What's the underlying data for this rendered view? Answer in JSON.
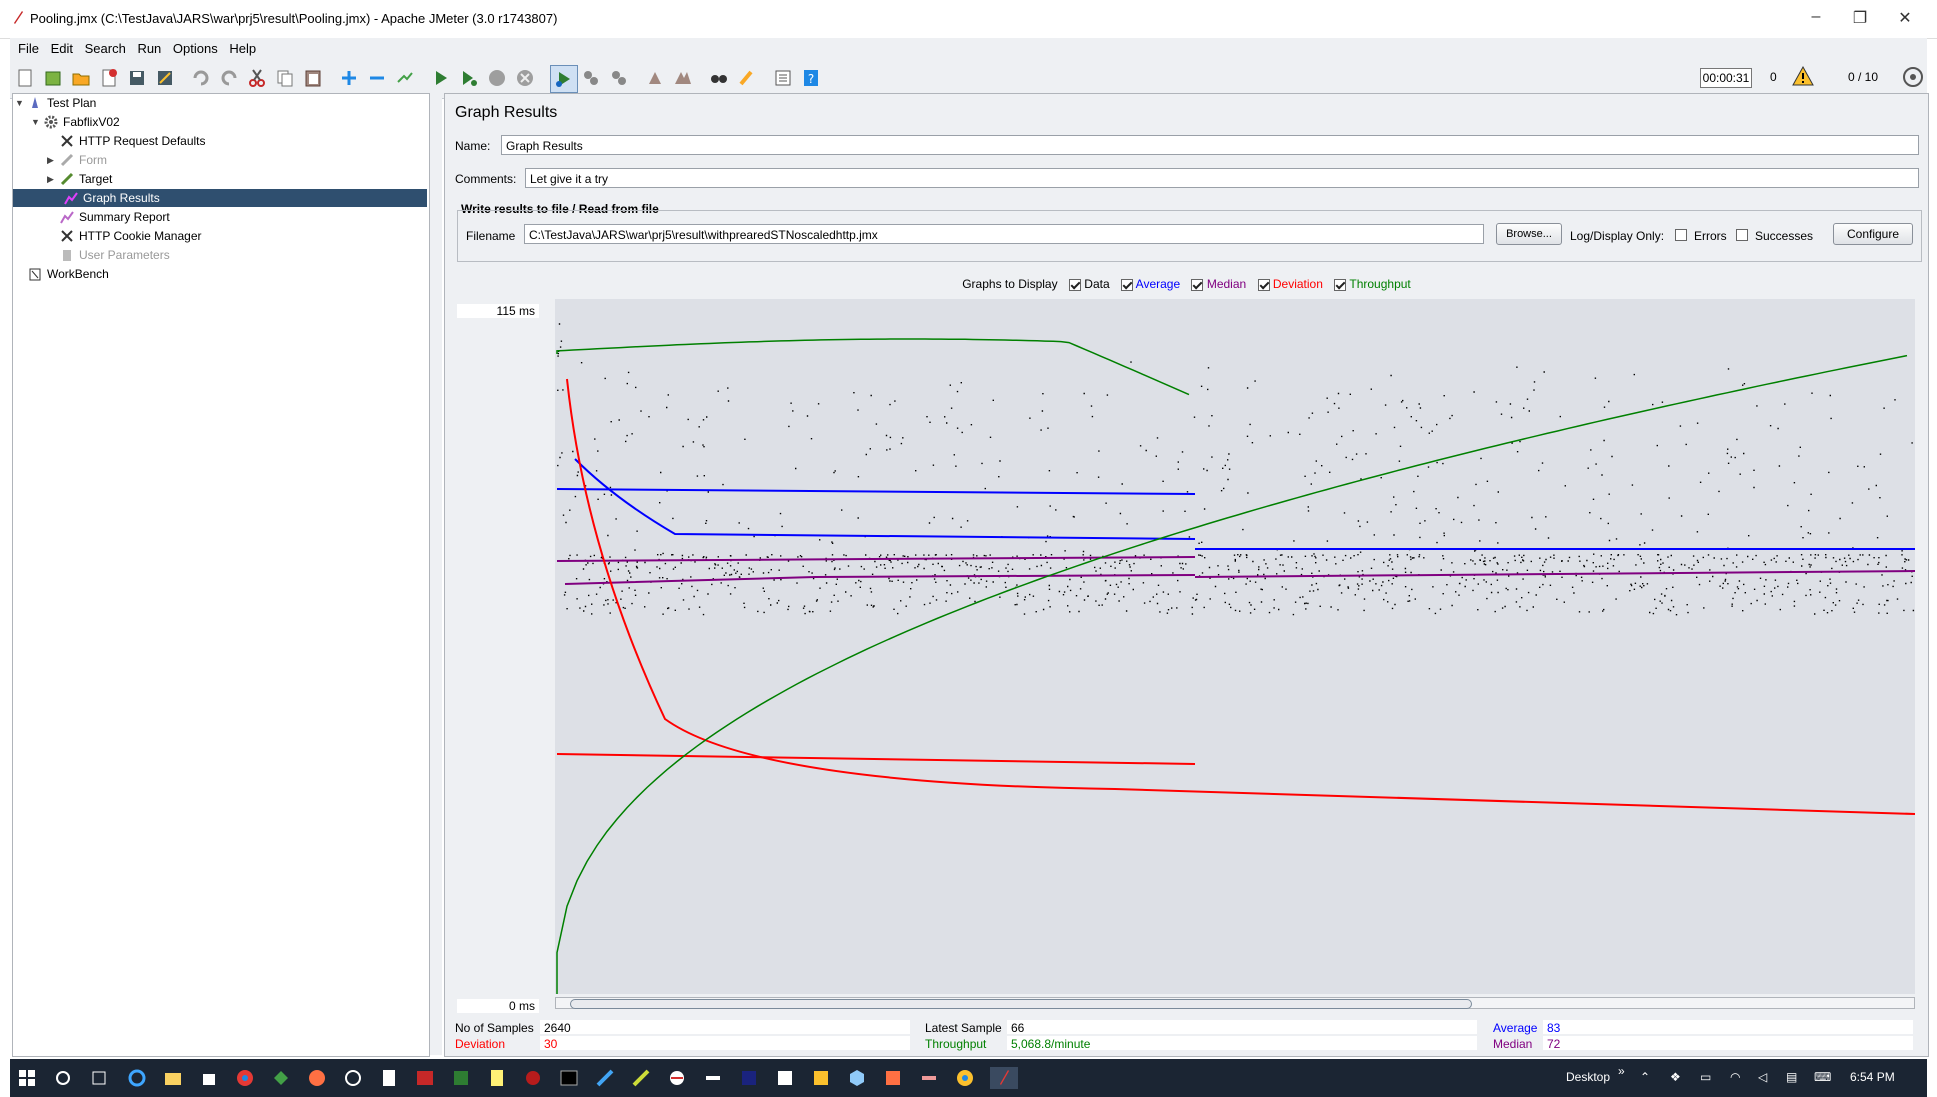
{
  "window": {
    "title": "Pooling.jmx (C:\\TestJava\\JARS\\war\\prj5\\result\\Pooling.jmx) - Apache JMeter (3.0 r1743807)",
    "controls": [
      "–",
      "❐",
      "✕"
    ]
  },
  "menu": [
    "File",
    "Edit",
    "Search",
    "Run",
    "Options",
    "Help"
  ],
  "toolbar_status": {
    "elapsed": "00:00:31",
    "error_count": "0",
    "threads": "0 / 10"
  },
  "tree": [
    {
      "label": "Test Plan",
      "icon": "test-plan-icon"
    },
    {
      "label": "FabflixV02",
      "icon": "gear-icon"
    },
    {
      "label": "HTTP Request Defaults",
      "icon": "wrench-icon"
    },
    {
      "label": "Form",
      "icon": "sampler-icon"
    },
    {
      "label": "Target",
      "icon": "sampler-icon"
    },
    {
      "label": "Graph Results",
      "icon": "graph-icon"
    },
    {
      "label": "Summary Report",
      "icon": "graph-icon"
    },
    {
      "label": "HTTP Cookie Manager",
      "icon": "wrench-icon"
    },
    {
      "label": "User Parameters",
      "icon": "params-icon"
    },
    {
      "label": "WorkBench",
      "icon": "workbench-icon"
    }
  ],
  "panel": {
    "title": "Graph Results",
    "name_label": "Name:",
    "name_value": "Graph Results",
    "comments_label": "Comments:",
    "comments_value": "Let give it a try",
    "file_section": "Write results to file / Read from file",
    "filename_label": "Filename",
    "filename_value": "C:\\TestJava\\JARS\\war\\prj5\\result\\withprearedSTNoscaledhttp.jmx",
    "browse_label": "Browse...",
    "logdisplay_label": "Log/Display Only:",
    "errors_label": "Errors",
    "successes_label": "Successes",
    "configure_label": "Configure",
    "graphs_label": "Graphs to Display",
    "opt_data": "Data",
    "opt_average": "Average",
    "opt_median": "Median",
    "opt_deviation": "Deviation",
    "opt_throughput": "Throughput"
  },
  "graph": {
    "y_max_label": "115  ms",
    "y_min_label": "0  ms",
    "colors": {
      "data": "#000000",
      "average": "#0000ff",
      "median": "#800080",
      "deviation": "#ff0000",
      "throughput": "#008000"
    }
  },
  "stats": {
    "samples_label": "No of Samples",
    "samples_value": "2640",
    "latest_label": "Latest Sample",
    "latest_value": "66",
    "average_label": "Average",
    "average_value": "83",
    "deviation_label": "Deviation",
    "deviation_value": "30",
    "throughput_label": "Throughput",
    "throughput_value": "5,068.8/minute",
    "median_label": "Median",
    "median_value": "72"
  },
  "taskbar": {
    "desktop_label": "Desktop",
    "chevron": "»",
    "clock": "6:54 PM"
  }
}
